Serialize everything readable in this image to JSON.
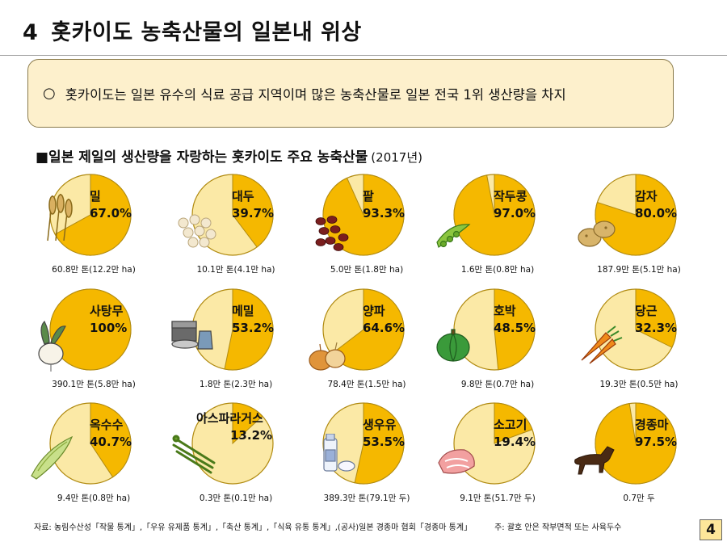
{
  "title": {
    "number": "4",
    "text": "홋카이도 농축산물의 일본내 위상"
  },
  "summary": {
    "bullet": "○",
    "text": "홋카이도는 일본 유수의 식료 공급 지역이며 많은 농축산물로 일본 전국 1위 생산량을 차지"
  },
  "section": {
    "heading": "■일본 제일의 생산량을 자랑하는 홋카이도 주요 농축산물",
    "year": "(2017년)"
  },
  "colors": {
    "share": "#f5b800",
    "rest": "#fbe9a6",
    "outline": "#b08a10"
  },
  "chart_data": {
    "type": "pie",
    "title": "일본 제일의 생산량을 자랑하는 홋카이도 주요 농축산물 (2017년)",
    "items": [
      {
        "name": "밀",
        "share_label": "67.0%",
        "share": 67.0,
        "caption": "60.8만 톤(12.2만 ha)",
        "icon": "wheat-icon"
      },
      {
        "name": "대두",
        "share_label": "39.7%",
        "share": 39.7,
        "caption": "10.1만 톤(4.1만 ha)",
        "icon": "soybeans-icon"
      },
      {
        "name": "팥",
        "share_label": "93.3%",
        "share": 93.3,
        "caption": "5.0만 톤(1.8만 ha)",
        "icon": "red-beans-icon"
      },
      {
        "name": "작두콩",
        "share_label": "97.0%",
        "share": 97.0,
        "caption": "1.6만 톤(0.8만 ha)",
        "icon": "bean-pods-icon"
      },
      {
        "name": "감자",
        "share_label": "80.0%",
        "share": 80.0,
        "caption": "187.9만 톤(5.1만 ha)",
        "icon": "potato-icon"
      },
      {
        "name": "사탕무",
        "share_label": "100%",
        "share": 100,
        "caption": "390.1만 톤(5.8만 ha)",
        "icon": "sugar-beet-icon"
      },
      {
        "name": "메밀",
        "share_label": "53.2%",
        "share": 53.2,
        "caption": "1.8만 톤(2.3만 ha)",
        "icon": "buckwheat-icon"
      },
      {
        "name": "양파",
        "share_label": "64.6%",
        "share": 64.6,
        "caption": "78.4만 톤(1.5만 ha)",
        "icon": "onion-icon"
      },
      {
        "name": "호박",
        "share_label": "48.5%",
        "share": 48.5,
        "caption": "9.8만 톤(0.7만 ha)",
        "icon": "pumpkin-icon"
      },
      {
        "name": "당근",
        "share_label": "32.3%",
        "share": 32.3,
        "caption": "19.3만 톤(0.5만 ha)",
        "icon": "carrot-icon"
      },
      {
        "name": "옥수수",
        "share_label": "40.7%",
        "share": 40.7,
        "caption": "9.4만 톤(0.8만 ha)",
        "icon": "corn-icon"
      },
      {
        "name": "아스파라거스",
        "share_label": "13.2%",
        "share": 13.2,
        "caption": "0.3만 톤(0.1만 ha)",
        "icon": "asparagus-icon"
      },
      {
        "name": "생우유",
        "share_label": "53.5%",
        "share": 53.5,
        "caption": "389.3만 톤(79.1만 두)",
        "icon": "milk-icon"
      },
      {
        "name": "소고기",
        "share_label": "19.4%",
        "share": 19.4,
        "caption": "9.1만 톤(51.7만 두)",
        "icon": "beef-icon"
      },
      {
        "name": "경종마",
        "share_label": "97.5%",
        "share": 97.5,
        "caption": "0.7만 두",
        "icon": "horse-icon"
      }
    ]
  },
  "footnote": {
    "source": "자료: 농림수산성「작물 통계」,「우유 유제품 통계」,「축산 통계」,「식육 유통 통계」,(공사)일본 경종마 협회「경종마 통계」",
    "note": "주: 괄호 안은 작부면적 또는 사육두수"
  },
  "page_number": "4"
}
